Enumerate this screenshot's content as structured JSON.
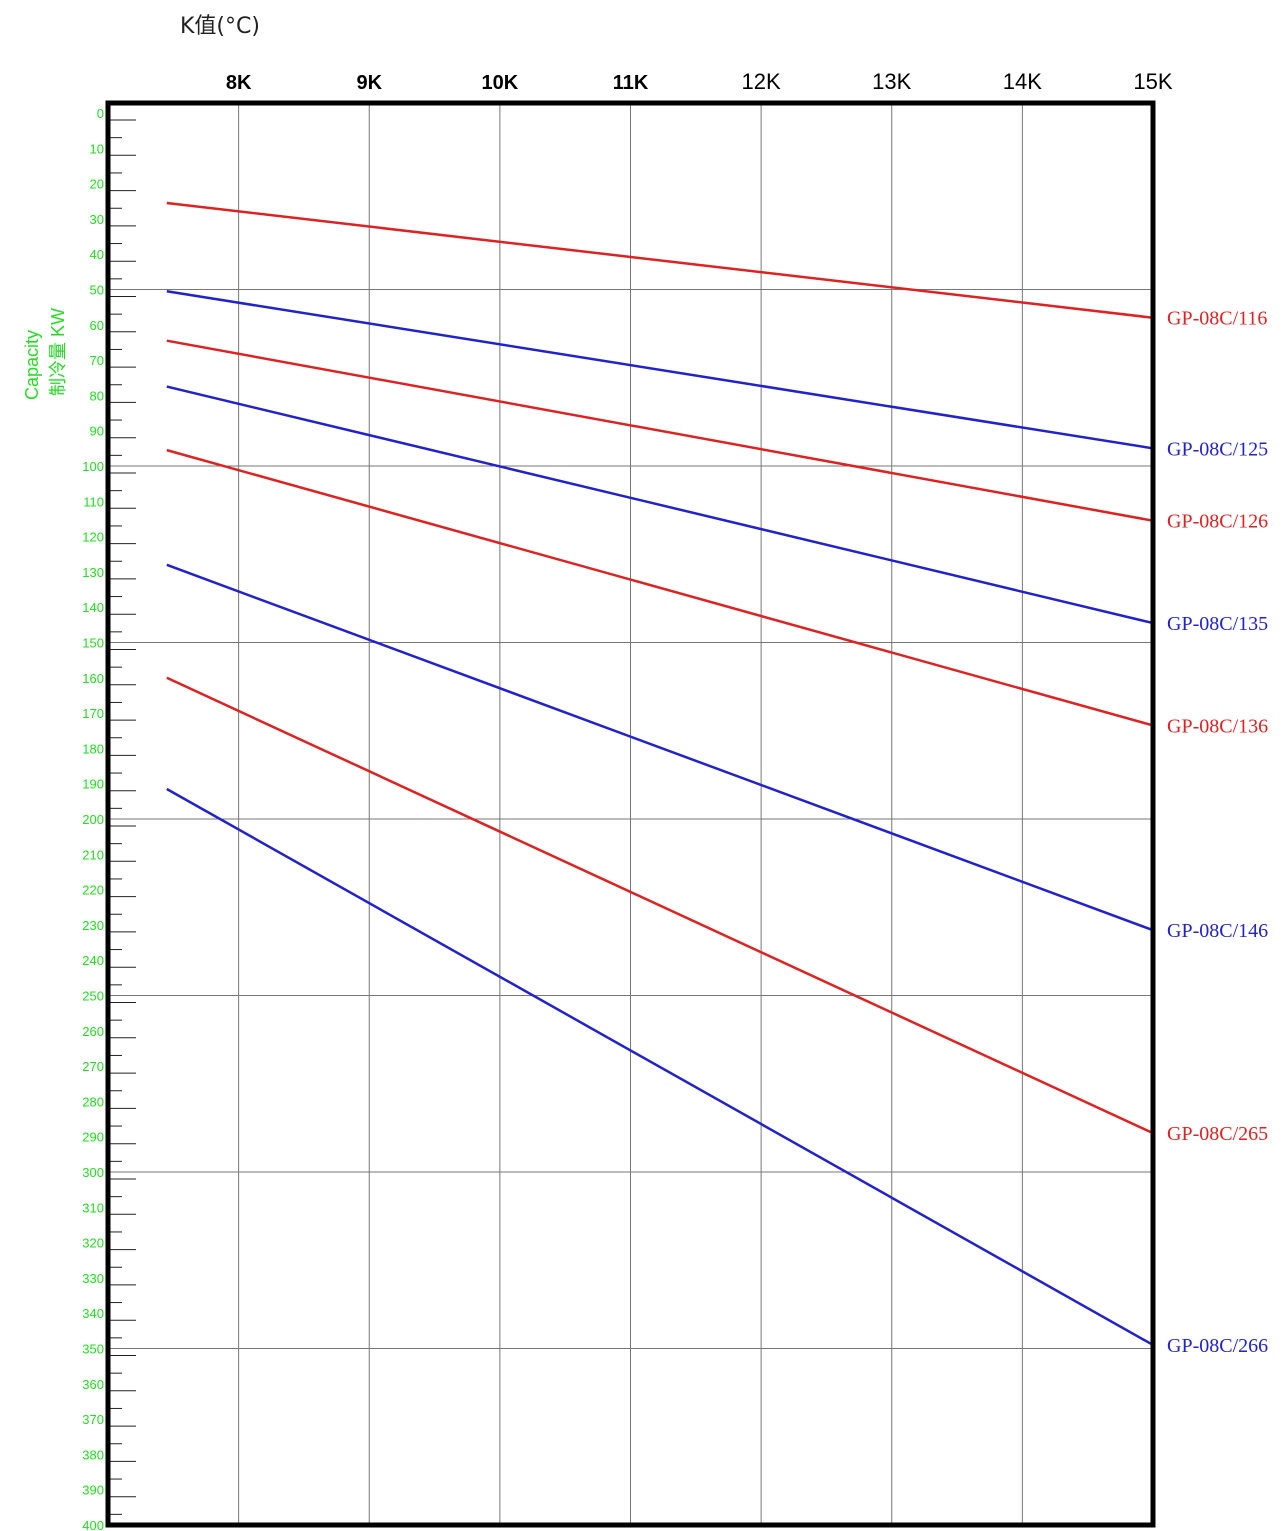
{
  "chart_data": {
    "type": "line",
    "title": "",
    "xlabel": "K值(°C)",
    "ylabel_en": "Capacity",
    "ylabel_cn": "制冷量 KW",
    "x_ticks": [
      {
        "label": "8K",
        "value": 8,
        "bold": true
      },
      {
        "label": "9K",
        "value": 9,
        "bold": true
      },
      {
        "label": "10K",
        "value": 10,
        "bold": true
      },
      {
        "label": "11K",
        "value": 11,
        "bold": true
      },
      {
        "label": "12K",
        "value": 12,
        "bold": false
      },
      {
        "label": "13K",
        "value": 13,
        "bold": false
      },
      {
        "label": "14K",
        "value": 14,
        "bold": false
      },
      {
        "label": "15K",
        "value": 15,
        "bold": false
      }
    ],
    "xlim": [
      7.0,
      15.0
    ],
    "ylim": [
      0,
      400
    ],
    "y_inverted": true,
    "y_ticks": [
      0,
      10,
      20,
      30,
      40,
      50,
      60,
      70,
      80,
      90,
      100,
      110,
      120,
      130,
      140,
      150,
      160,
      170,
      180,
      190,
      200,
      210,
      220,
      230,
      240,
      250,
      260,
      270,
      280,
      290,
      300,
      310,
      320,
      330,
      340,
      350,
      360,
      370,
      380,
      390,
      400
    ],
    "grid": true,
    "series": [
      {
        "name": "GP-08C/116",
        "color": "#dd2222",
        "x": [
          7.45,
          15
        ],
        "y": [
          25.5,
          58
        ]
      },
      {
        "name": "GP-08C/125",
        "color": "#2222cc",
        "x": [
          7.45,
          15
        ],
        "y": [
          50.5,
          95
        ]
      },
      {
        "name": "GP-08C/126",
        "color": "#dd2222",
        "x": [
          7.45,
          15
        ],
        "y": [
          64.5,
          115.5
        ]
      },
      {
        "name": "GP-08C/135",
        "color": "#2222cc",
        "x": [
          7.45,
          15
        ],
        "y": [
          77.5,
          144.5
        ]
      },
      {
        "name": "GP-08C/136",
        "color": "#dd2222",
        "x": [
          7.45,
          15
        ],
        "y": [
          95.5,
          173.5
        ]
      },
      {
        "name": "GP-08C/146",
        "color": "#2222cc",
        "x": [
          7.45,
          15
        ],
        "y": [
          128,
          231.5
        ]
      },
      {
        "name": "GP-08C/265",
        "color": "#dd2222",
        "x": [
          7.45,
          15
        ],
        "y": [
          160,
          289
        ]
      },
      {
        "name": "GP-08C/266",
        "color": "#2222cc",
        "x": [
          7.45,
          15
        ],
        "y": [
          191.5,
          349
        ]
      }
    ]
  }
}
